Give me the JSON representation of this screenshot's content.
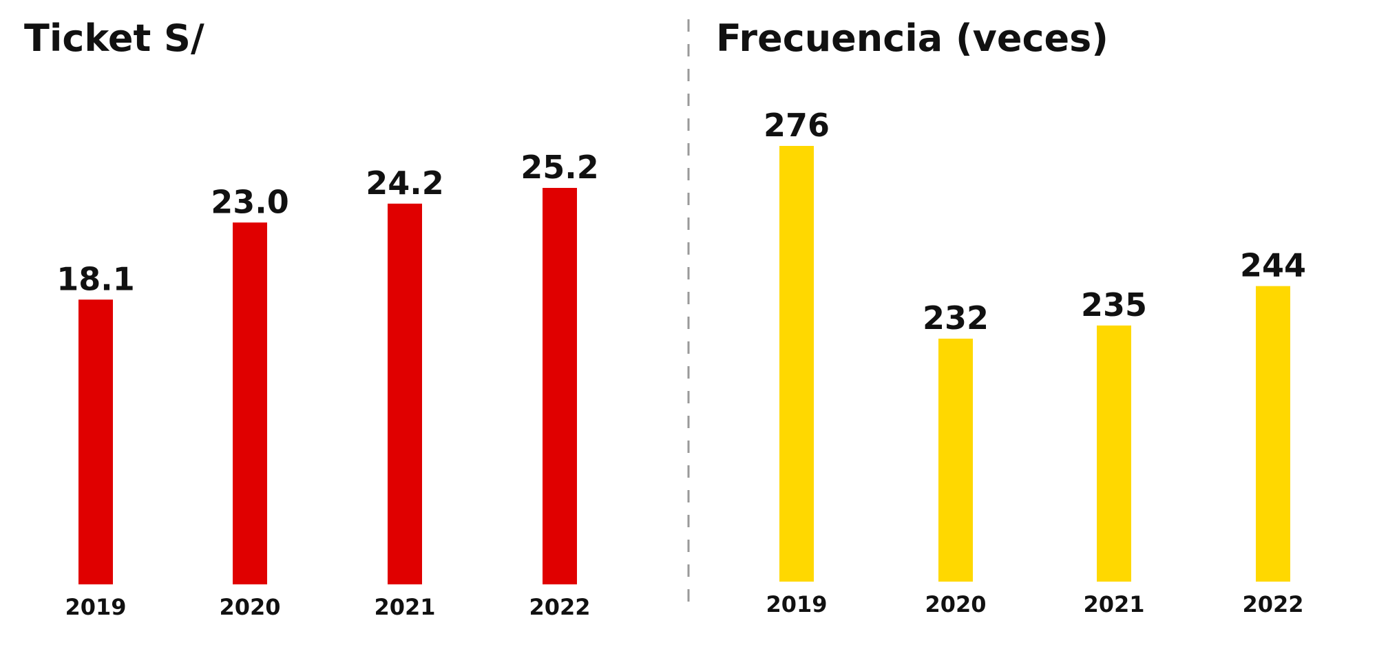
{
  "chart_data": [
    {
      "type": "bar",
      "title": "Ticket S/",
      "categories": [
        "2019",
        "2020",
        "2021",
        "2022"
      ],
      "values": [
        18.1,
        23.0,
        24.2,
        25.2
      ],
      "value_labels": [
        "18.1",
        "23.0",
        "24.2",
        "25.2"
      ],
      "ylim": [
        0,
        25.2
      ],
      "grid": false,
      "color": "#e00000"
    },
    {
      "type": "bar",
      "title": "Frecuencia (veces)",
      "categories": [
        "2019",
        "2020",
        "2021",
        "2022"
      ],
      "values": [
        276,
        232,
        235,
        244
      ],
      "value_labels": [
        "276",
        "232",
        "235",
        "244"
      ],
      "ylim": [
        210,
        276
      ],
      "grid": false,
      "color": "#ffd800"
    }
  ],
  "colors": {
    "divider": "#999999",
    "text": "#111111"
  }
}
